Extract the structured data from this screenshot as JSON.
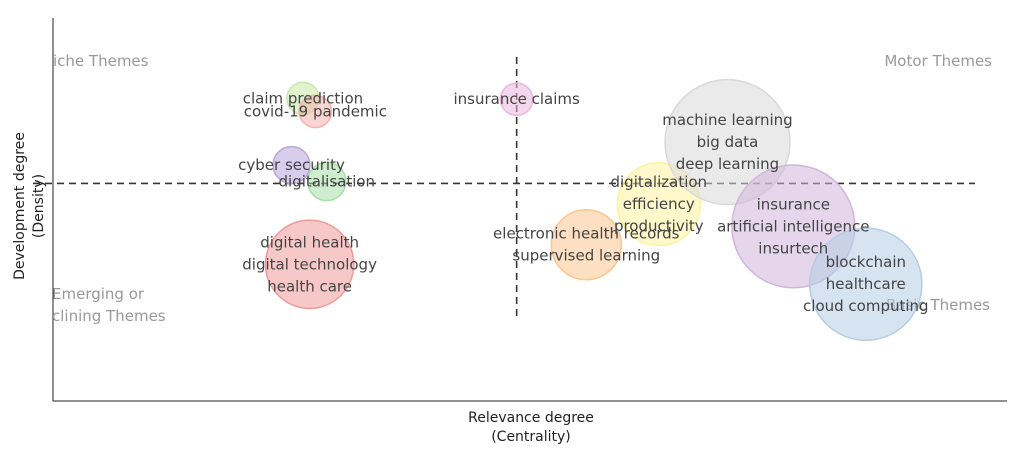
{
  "chart_data": {
    "type": "scatter",
    "xlabel": [
      "Relevance degree",
      "(Centrality)"
    ],
    "ylabel": [
      "Development degree",
      "(Density)"
    ],
    "grid": false,
    "quadrant_labels": {
      "top_left": "iche Themes",
      "top_right": "Motor Themes",
      "bottom_left": [
        "Emerging or",
        "clining Themes"
      ],
      "bottom_right": "Basic Themes"
    },
    "clusters": [
      {
        "labels": [
          "claim prediction"
        ],
        "x": 0.262,
        "y": 0.79,
        "size": 0.1,
        "color": "#c9e8a8"
      },
      {
        "labels": [
          "covid-19 pandemic"
        ],
        "x": 0.275,
        "y": 0.756,
        "size": 0.1,
        "color": "#f6b2ab"
      },
      {
        "labels": [
          "insurance claims"
        ],
        "x": 0.486,
        "y": 0.788,
        "size": 0.1,
        "color": "#eab6dd"
      },
      {
        "labels": [
          "cyber security"
        ],
        "x": 0.25,
        "y": 0.616,
        "size": 0.13,
        "color": "#b8a6dc"
      },
      {
        "labels": [
          "digitalisation"
        ],
        "x": 0.287,
        "y": 0.573,
        "size": 0.14,
        "color": "#a8dea8"
      },
      {
        "labels": [
          "digital health",
          "digital technology",
          "health care"
        ],
        "x": 0.269,
        "y": 0.357,
        "size": 0.75,
        "color": "#f19a9a"
      },
      {
        "labels": [
          "electronic health records",
          "supervised learning"
        ],
        "x": 0.559,
        "y": 0.408,
        "size": 0.47,
        "color": "#fbc58e"
      },
      {
        "labels": [
          "digitalization",
          "efficiency",
          "productivity"
        ],
        "x": 0.635,
        "y": 0.514,
        "size": 0.66,
        "color": "#fdf29e"
      },
      {
        "labels": [
          "machine learning",
          "big data",
          "deep learning"
        ],
        "x": 0.707,
        "y": 0.676,
        "size": 1.5,
        "color": "#d9d9d9"
      },
      {
        "labels": [
          "insurance",
          "artificial intelligence",
          "insurtech"
        ],
        "x": 0.776,
        "y": 0.456,
        "size": 1.45,
        "color": "#d2b5dc"
      },
      {
        "labels": [
          "blockchain",
          "healthcare",
          "cloud computing"
        ],
        "x": 0.852,
        "y": 0.305,
        "size": 1.21,
        "color": "#b3cde3"
      }
    ],
    "reference_lines": {
      "x": 0.486,
      "y": 0.568
    }
  }
}
